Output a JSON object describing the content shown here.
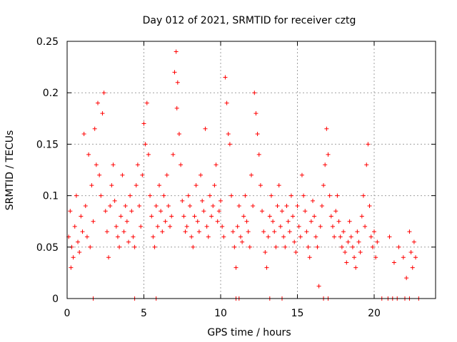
{
  "chart_data": {
    "type": "scatter",
    "title": "Day 012 of 2021, SRMTID for receiver cztg",
    "xlabel": "GPS time / hours",
    "ylabel": "SRMTID / TECUs",
    "xlim": [
      0,
      24
    ],
    "ylim": [
      0,
      0.25
    ],
    "x_ticks": [
      0,
      5,
      10,
      15,
      20
    ],
    "x_tick_labels": [
      "0",
      "5",
      "10",
      "15",
      "20"
    ],
    "y_ticks": [
      0,
      0.05,
      0.1,
      0.15,
      0.2,
      0.25
    ],
    "y_tick_labels": [
      "0",
      "0.05",
      "0.1",
      "0.15",
      "0.2",
      "0.25"
    ],
    "grid": true,
    "marker": "plus",
    "color": "#ff0000",
    "series": [
      {
        "name": "SRMTID",
        "points": [
          [
            0.1,
            0.06
          ],
          [
            0.2,
            0.085
          ],
          [
            0.25,
            0.03
          ],
          [
            0.3,
            0.05
          ],
          [
            0.4,
            0.04
          ],
          [
            0.5,
            0.07
          ],
          [
            0.6,
            0.1
          ],
          [
            0.7,
            0.055
          ],
          [
            0.8,
            0.045
          ],
          [
            0.9,
            0.08
          ],
          [
            1.0,
            0.065
          ],
          [
            1.1,
            0.16
          ],
          [
            1.2,
            0.09
          ],
          [
            1.3,
            0.06
          ],
          [
            1.4,
            0.14
          ],
          [
            1.5,
            0.05
          ],
          [
            1.6,
            0.11
          ],
          [
            1.7,
            0.075
          ],
          [
            1.8,
            0.165
          ],
          [
            1.9,
            0.13
          ],
          [
            2.0,
            0.19
          ],
          [
            2.1,
            0.12
          ],
          [
            2.2,
            0.1
          ],
          [
            2.3,
            0.18
          ],
          [
            2.4,
            0.2
          ],
          [
            2.5,
            0.085
          ],
          [
            2.6,
            0.065
          ],
          [
            2.7,
            0.04
          ],
          [
            2.8,
            0.09
          ],
          [
            2.9,
            0.11
          ],
          [
            3.0,
            0.13
          ],
          [
            3.1,
            0.095
          ],
          [
            3.2,
            0.07
          ],
          [
            3.3,
            0.06
          ],
          [
            3.4,
            0.05
          ],
          [
            3.5,
            0.08
          ],
          [
            3.6,
            0.12
          ],
          [
            3.7,
            0.065
          ],
          [
            3.8,
            0.09
          ],
          [
            3.9,
            0.075
          ],
          [
            4.0,
            0.055
          ],
          [
            4.1,
            0.1
          ],
          [
            4.2,
            0.085
          ],
          [
            4.3,
            0.06
          ],
          [
            4.4,
            0.05
          ],
          [
            4.5,
            0.11
          ],
          [
            4.6,
            0.13
          ],
          [
            4.7,
            0.09
          ],
          [
            4.8,
            0.07
          ],
          [
            4.9,
            0.12
          ],
          [
            5.0,
            0.17
          ],
          [
            5.1,
            0.15
          ],
          [
            5.2,
            0.19
          ],
          [
            5.3,
            0.14
          ],
          [
            5.4,
            0.1
          ],
          [
            5.5,
            0.08
          ],
          [
            5.6,
            0.06
          ],
          [
            5.7,
            0.05
          ],
          [
            5.8,
            0.09
          ],
          [
            5.9,
            0.07
          ],
          [
            6.0,
            0.11
          ],
          [
            6.1,
            0.085
          ],
          [
            6.2,
            0.065
          ],
          [
            6.3,
            0.1
          ],
          [
            6.4,
            0.075
          ],
          [
            6.5,
            0.12
          ],
          [
            6.6,
            0.09
          ],
          [
            6.7,
            0.07
          ],
          [
            6.8,
            0.08
          ],
          [
            6.9,
            0.14
          ],
          [
            7.0,
            0.22
          ],
          [
            7.1,
            0.24
          ],
          [
            7.15,
            0.185
          ],
          [
            7.2,
            0.21
          ],
          [
            7.3,
            0.16
          ],
          [
            7.4,
            0.13
          ],
          [
            7.5,
            0.095
          ],
          [
            7.6,
            0.08
          ],
          [
            7.7,
            0.065
          ],
          [
            7.8,
            0.07
          ],
          [
            7.9,
            0.1
          ],
          [
            8.0,
            0.09
          ],
          [
            8.1,
            0.06
          ],
          [
            8.2,
            0.05
          ],
          [
            8.3,
            0.08
          ],
          [
            8.4,
            0.11
          ],
          [
            8.5,
            0.075
          ],
          [
            8.6,
            0.065
          ],
          [
            8.7,
            0.12
          ],
          [
            8.8,
            0.095
          ],
          [
            8.9,
            0.085
          ],
          [
            9.0,
            0.165
          ],
          [
            9.1,
            0.07
          ],
          [
            9.2,
            0.06
          ],
          [
            9.3,
            0.1
          ],
          [
            9.4,
            0.08
          ],
          [
            9.5,
            0.09
          ],
          [
            9.6,
            0.11
          ],
          [
            9.7,
            0.13
          ],
          [
            9.8,
            0.075
          ],
          [
            9.9,
            0.085
          ],
          [
            10.0,
            0.095
          ],
          [
            10.1,
            0.07
          ],
          [
            10.2,
            0.06
          ],
          [
            10.3,
            0.215
          ],
          [
            10.4,
            0.19
          ],
          [
            10.5,
            0.16
          ],
          [
            10.6,
            0.15
          ],
          [
            10.7,
            0.1
          ],
          [
            10.8,
            0.065
          ],
          [
            10.9,
            0.05
          ],
          [
            11.0,
            0.03
          ],
          [
            11.1,
            0.07
          ],
          [
            11.2,
            0.09
          ],
          [
            11.3,
            0.06
          ],
          [
            11.4,
            0.055
          ],
          [
            11.5,
            0.08
          ],
          [
            11.6,
            0.1
          ],
          [
            11.7,
            0.075
          ],
          [
            11.8,
            0.065
          ],
          [
            11.9,
            0.05
          ],
          [
            12.0,
            0.12
          ],
          [
            12.1,
            0.09
          ],
          [
            12.2,
            0.2
          ],
          [
            12.3,
            0.18
          ],
          [
            12.4,
            0.16
          ],
          [
            12.5,
            0.14
          ],
          [
            12.6,
            0.11
          ],
          [
            12.7,
            0.085
          ],
          [
            12.8,
            0.065
          ],
          [
            12.9,
            0.045
          ],
          [
            13.0,
            0.03
          ],
          [
            13.1,
            0.06
          ],
          [
            13.2,
            0.08
          ],
          [
            13.3,
            0.1
          ],
          [
            13.4,
            0.075
          ],
          [
            13.5,
            0.065
          ],
          [
            13.6,
            0.05
          ],
          [
            13.7,
            0.09
          ],
          [
            13.8,
            0.11
          ],
          [
            13.9,
            0.07
          ],
          [
            14.0,
            0.085
          ],
          [
            14.1,
            0.06
          ],
          [
            14.2,
            0.05
          ],
          [
            14.3,
            0.09
          ],
          [
            14.4,
            0.075
          ],
          [
            14.5,
            0.065
          ],
          [
            14.6,
            0.1
          ],
          [
            14.7,
            0.08
          ],
          [
            14.8,
            0.055
          ],
          [
            14.9,
            0.045
          ],
          [
            15.0,
            0.09
          ],
          [
            15.1,
            0.07
          ],
          [
            15.2,
            0.06
          ],
          [
            15.3,
            0.12
          ],
          [
            15.4,
            0.1
          ],
          [
            15.5,
            0.085
          ],
          [
            15.6,
            0.065
          ],
          [
            15.7,
            0.05
          ],
          [
            15.8,
            0.04
          ],
          [
            15.9,
            0.075
          ],
          [
            16.0,
            0.095
          ],
          [
            16.1,
            0.08
          ],
          [
            16.2,
            0.06
          ],
          [
            16.3,
            0.05
          ],
          [
            16.4,
            0.012
          ],
          [
            16.5,
            0.07
          ],
          [
            16.6,
            0.09
          ],
          [
            16.7,
            0.11
          ],
          [
            16.8,
            0.13
          ],
          [
            16.9,
            0.165
          ],
          [
            17.0,
            0.14
          ],
          [
            17.1,
            0.1
          ],
          [
            17.2,
            0.08
          ],
          [
            17.3,
            0.07
          ],
          [
            17.4,
            0.06
          ],
          [
            17.5,
            0.085
          ],
          [
            17.6,
            0.1
          ],
          [
            17.7,
            0.075
          ],
          [
            17.8,
            0.06
          ],
          [
            17.9,
            0.05
          ],
          [
            18.0,
            0.065
          ],
          [
            18.1,
            0.045
          ],
          [
            18.2,
            0.035
          ],
          [
            18.3,
            0.055
          ],
          [
            18.4,
            0.075
          ],
          [
            18.5,
            0.06
          ],
          [
            18.6,
            0.05
          ],
          [
            18.7,
            0.04
          ],
          [
            18.8,
            0.03
          ],
          [
            18.9,
            0.065
          ],
          [
            19.0,
            0.055
          ],
          [
            19.1,
            0.045
          ],
          [
            19.2,
            0.08
          ],
          [
            19.3,
            0.1
          ],
          [
            19.4,
            0.07
          ],
          [
            19.5,
            0.13
          ],
          [
            19.6,
            0.15
          ],
          [
            19.7,
            0.09
          ],
          [
            19.8,
            0.06
          ],
          [
            19.9,
            0.05
          ],
          [
            20.0,
            0.065
          ],
          [
            20.1,
            0.04
          ],
          [
            20.2,
            0.055
          ],
          [
            21.0,
            0.06
          ],
          [
            21.3,
            0.035
          ],
          [
            21.6,
            0.05
          ],
          [
            21.9,
            0.04
          ],
          [
            22.1,
            0.02
          ],
          [
            22.3,
            0.065
          ],
          [
            22.4,
            0.045
          ],
          [
            22.5,
            0.03
          ],
          [
            22.6,
            0.055
          ],
          [
            22.7,
            0.04
          ],
          [
            1.7,
            0.0
          ],
          [
            4.4,
            0.0
          ],
          [
            5.8,
            0.0
          ],
          [
            11.0,
            0.0
          ],
          [
            11.2,
            0.0
          ],
          [
            13.2,
            0.0
          ],
          [
            14.0,
            0.0
          ],
          [
            16.7,
            0.0
          ],
          [
            17.0,
            0.0
          ],
          [
            20.5,
            0.0
          ],
          [
            20.9,
            0.0
          ],
          [
            21.2,
            0.0
          ],
          [
            21.5,
            0.0
          ],
          [
            22.0,
            0.0
          ],
          [
            22.3,
            0.0
          ],
          [
            22.9,
            0.0
          ]
        ]
      }
    ]
  }
}
